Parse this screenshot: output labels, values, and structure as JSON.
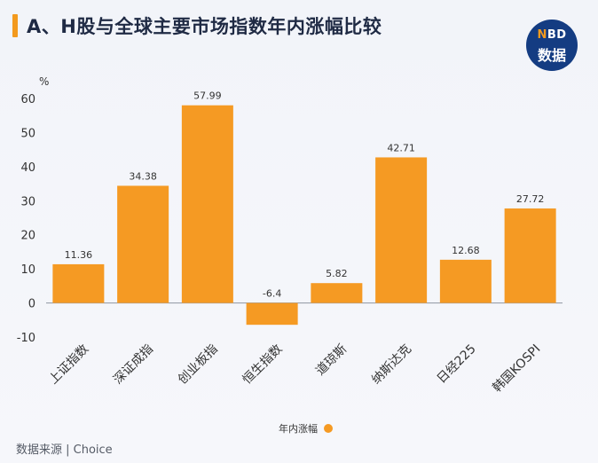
{
  "title": "A、H股与全球主要市场指数年内涨幅比较",
  "logo": {
    "line1_n": "N",
    "line1_rest": "BD",
    "line2": "数据"
  },
  "source": "数据来源 | Choice",
  "colors": {
    "bar": "#f59a23",
    "axis": "#9aa0aa",
    "text": "#333333"
  },
  "chart_data": {
    "type": "bar",
    "ylabel": "%",
    "ylim": [
      -10,
      60
    ],
    "yticks": [
      -10,
      0,
      10,
      20,
      30,
      40,
      50,
      60
    ],
    "categories": [
      "上证指数",
      "深证成指",
      "创业板指",
      "恒生指数",
      "道琼斯",
      "纳斯达克",
      "日经225",
      "韩国KOSPI"
    ],
    "series": [
      {
        "name": "年内涨幅",
        "values": [
          11.36,
          34.38,
          57.99,
          -6.4,
          5.82,
          42.71,
          12.68,
          27.72
        ],
        "labels": [
          "11.36",
          "34.38",
          "57.99",
          "-6.4",
          "5.82",
          "42.71",
          "12.68",
          "27.72"
        ]
      }
    ],
    "legend": "bottom-center",
    "grid": false
  }
}
